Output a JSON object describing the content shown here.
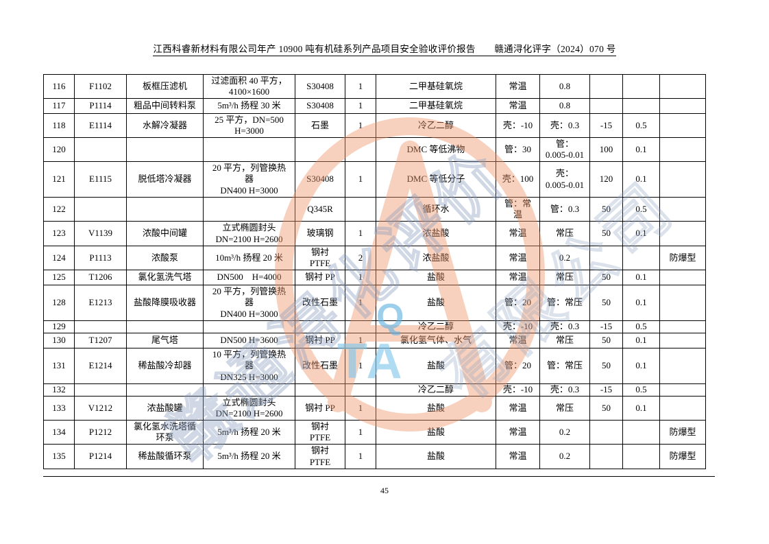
{
  "page": {
    "header": "江西科睿新材料有限公司年产 10900 吨有机硅系列产品项目安全验收评价报告　　赣通浔化评字（2024）070 号",
    "page_number": "45"
  },
  "table": {
    "rows": [
      [
        "116",
        "F1102",
        "板框压滤机",
        "过滤面积 40 平方，\n4100×1600",
        "S30408",
        "1",
        "二甲基硅氧烷",
        "常温",
        "0.8",
        "",
        "",
        ""
      ],
      [
        "117",
        "P1114",
        "粗品中间转料泵",
        "5m³/h 扬程 30 米",
        "S30408",
        "1",
        "二甲基硅氧烷",
        "常温",
        "0.8",
        "",
        "",
        ""
      ],
      [
        "118",
        "E1114",
        "水解冷凝器",
        "25 平方，DN=500\nH=3000",
        "石墨",
        "1",
        "冷乙二醇",
        "壳：-10",
        "壳：0.3",
        "-15",
        "0.5",
        ""
      ],
      [
        "120",
        "",
        "",
        "",
        "",
        "",
        "DMC 等低沸物",
        "管：30",
        "管：\n0.005-0.01",
        "100",
        "0.1",
        ""
      ],
      [
        "121",
        "E1115",
        "脱低塔冷凝器",
        "20 平方，列管换热\n器\nDN400 H=3000",
        "S30408",
        "1",
        "DMC 等低分子",
        "壳：100",
        "壳：\n0.005-0.01",
        "120",
        "0.1",
        ""
      ],
      [
        "122",
        "",
        "",
        "",
        "Q345R",
        "",
        "循环水",
        "管：常\n温",
        "管：0.3",
        "50",
        "0.5",
        ""
      ],
      [
        "123",
        "V1139",
        "浓酸中间罐",
        "立式椭圆封头\nDN=2100 H=2600",
        "玻璃钢",
        "1",
        "浓盐酸",
        "常温",
        "常压",
        "50",
        "0.1",
        ""
      ],
      [
        "124",
        "P1113",
        "浓酸泵",
        "10m³/h 扬程 20 米",
        "钢衬\nPTFE",
        "2",
        "浓盐酸",
        "常温",
        "0.2",
        "",
        "",
        "防爆型"
      ],
      [
        "125",
        "T1206",
        "氯化氢洗气塔",
        "DN500　H=4000",
        "钢衬 PP",
        "1",
        "盐酸",
        "常温",
        "常压",
        "50",
        "0.1",
        ""
      ],
      [
        "128",
        "E1213",
        "盐酸降膜吸收器",
        "20 平方，列管换热\n器\nDN400 H=3000",
        "改性石墨",
        "1",
        "盐酸",
        "管：20",
        "管：常压",
        "50",
        "0.1",
        ""
      ],
      [
        "129",
        "",
        "",
        "",
        "",
        "",
        "冷乙二醇",
        "壳：-10",
        "壳：0.3",
        "-15",
        "0.5",
        ""
      ],
      [
        "130",
        "T1207",
        "尾气塔",
        "DN500 H=3600",
        "钢衬 PP",
        "1",
        "氯化氢气体、水气",
        "常温",
        "常压",
        "50",
        "0.1",
        ""
      ],
      [
        "131",
        "E1214",
        "稀盐酸冷却器",
        "10 平方，列管换热\n器\nDN325 H=3000",
        "改性石墨",
        "1",
        "盐酸",
        "管：20",
        "管：常压",
        "50",
        "0.1",
        ""
      ],
      [
        "132",
        "",
        "",
        "",
        "",
        "",
        "冷乙二醇",
        "壳：-10",
        "壳：0.3",
        "-15",
        "0.5",
        ""
      ],
      [
        "133",
        "V1212",
        "浓盐酸罐",
        "立式椭圆封头\nDN=2100 H=2600",
        "钢衬 PP",
        "1",
        "盐酸",
        "常温",
        "常压",
        "50",
        "0.1",
        ""
      ],
      [
        "134",
        "P1212",
        "氯化氢水洗塔循\n环泵",
        "5m³/h 扬程 20 米",
        "钢衬\nPTFE",
        "1",
        "盐酸",
        "常温",
        "0.2",
        "",
        "",
        "防爆型"
      ],
      [
        "135",
        "P1214",
        "稀盐酸循环泵",
        "5m³/h 扬程 20 米",
        "钢衬\nPTFE",
        "1",
        "盐酸",
        "常温",
        "0.2",
        "",
        "",
        "防爆型"
      ]
    ]
  },
  "watermark": {
    "letter_q": "Q",
    "letters_ta": "TA",
    "diagonal_text_1": "赣通浔化评价",
    "diagonal_text_2": "有限公司",
    "orange_color": "#ef9467",
    "blue_color": "#7ec7ec"
  }
}
